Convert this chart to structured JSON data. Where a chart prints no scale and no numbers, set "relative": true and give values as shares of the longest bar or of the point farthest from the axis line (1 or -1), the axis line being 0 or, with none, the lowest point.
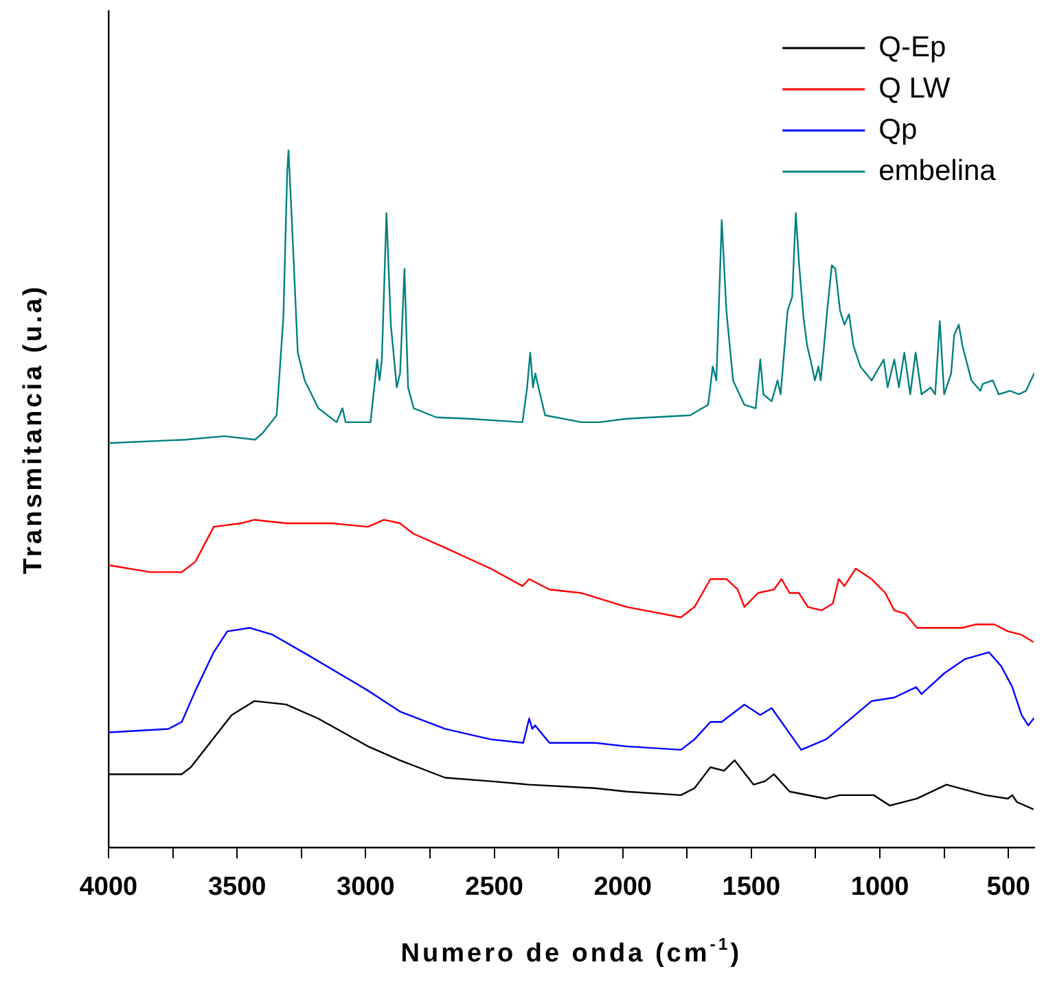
{
  "chart_data": {
    "type": "line",
    "relative": true,
    "xlabel": "Numero de onda (cm$^{-1}$)",
    "ylabel": "Transmitancia (u.a)",
    "legend": "top right",
    "grid": false,
    "marker": "none",
    "line_style": "solid",
    "tick_labels": "x",
    "xlim": [
      4000,
      400
    ],
    "xticks": [
      4000,
      {
        "value": 3750,
        "label": null
      },
      3500,
      {
        "value": 3250,
        "label": null
      },
      3000,
      {
        "value": 2750,
        "label": null
      },
      2500,
      {
        "value": 2250,
        "label": null
      },
      2000,
      {
        "value": 1750,
        "label": null
      },
      1500,
      {
        "value": 1250,
        "label": null
      },
      1000,
      {
        "value": 750,
        "label": null
      },
      500
    ],
    "series": [
      {
        "name": "Q-Ep",
        "color": "#000000",
        "x": [
          4000,
          3715,
          3680,
          3627,
          3521,
          3432,
          3309,
          3185,
          2991,
          2867,
          2691,
          2514,
          2364,
          2108,
          1985,
          1774,
          1721,
          1659,
          1606,
          1565,
          1491,
          1447,
          1412,
          1351,
          1209,
          1156,
          1024,
          962,
          856,
          741,
          590,
          502,
          485,
          467,
          405
        ],
        "values": [
          0.105,
          0.105,
          0.115,
          0.14,
          0.19,
          0.21,
          0.205,
          0.185,
          0.145,
          0.125,
          0.1,
          0.095,
          0.09,
          0.085,
          0.08,
          0.075,
          0.085,
          0.115,
          0.11,
          0.125,
          0.09,
          0.095,
          0.105,
          0.08,
          0.07,
          0.075,
          0.075,
          0.06,
          0.07,
          0.09,
          0.075,
          0.07,
          0.075,
          0.065,
          0.055
        ]
      },
      {
        "name": "Q LW",
        "color": "#ff0000",
        "x": [
          4000,
          3838,
          3715,
          3662,
          3591,
          3485,
          3432,
          3309,
          3132,
          2991,
          2929,
          2867,
          2814,
          2691,
          2514,
          2390,
          2364,
          2338,
          2285,
          2161,
          1985,
          1915,
          1774,
          1721,
          1659,
          1597,
          1553,
          1527,
          1474,
          1412,
          1383,
          1351,
          1315,
          1280,
          1227,
          1183,
          1160,
          1138,
          1094,
          1032,
          979,
          944,
          900,
          856,
          767,
          679,
          626,
          555,
          502,
          449,
          405
        ],
        "values": [
          0.405,
          0.395,
          0.395,
          0.41,
          0.46,
          0.465,
          0.47,
          0.465,
          0.465,
          0.46,
          0.47,
          0.465,
          0.45,
          0.43,
          0.4,
          0.375,
          0.385,
          0.38,
          0.37,
          0.365,
          0.345,
          0.34,
          0.33,
          0.345,
          0.385,
          0.385,
          0.37,
          0.345,
          0.365,
          0.37,
          0.385,
          0.365,
          0.365,
          0.345,
          0.34,
          0.35,
          0.385,
          0.375,
          0.4,
          0.385,
          0.365,
          0.34,
          0.335,
          0.315,
          0.315,
          0.315,
          0.32,
          0.32,
          0.31,
          0.305,
          0.295
        ]
      },
      {
        "name": "Qp",
        "color": "#0000ff",
        "x": [
          4000,
          3767,
          3715,
          3662,
          3591,
          3538,
          3450,
          3361,
          3220,
          2991,
          2867,
          2691,
          2514,
          2387,
          2364,
          2352,
          2341,
          2285,
          2108,
          1985,
          1774,
          1721,
          1659,
          1615,
          1527,
          1465,
          1421,
          1306,
          1209,
          1032,
          944,
          859,
          838,
          749,
          670,
          576,
          528,
          485,
          449,
          423,
          402
        ],
        "values": [
          0.165,
          0.17,
          0.18,
          0.225,
          0.28,
          0.31,
          0.315,
          0.305,
          0.275,
          0.225,
          0.195,
          0.17,
          0.155,
          0.15,
          0.185,
          0.17,
          0.175,
          0.15,
          0.15,
          0.145,
          0.14,
          0.155,
          0.18,
          0.18,
          0.205,
          0.19,
          0.2,
          0.14,
          0.155,
          0.21,
          0.215,
          0.23,
          0.22,
          0.25,
          0.27,
          0.28,
          0.26,
          0.23,
          0.19,
          0.175,
          0.185
        ]
      },
      {
        "name": "embelina",
        "color": "#008080",
        "x": [
          4000,
          3700,
          3550,
          3430,
          3399,
          3346,
          3320,
          3305,
          3300,
          3287,
          3264,
          3237,
          3184,
          3113,
          3090,
          3078,
          3025,
          2981,
          2955,
          2946,
          2937,
          2919,
          2902,
          2879,
          2866,
          2849,
          2835,
          2813,
          2725,
          2601,
          2390,
          2372,
          2360,
          2349,
          2340,
          2328,
          2302,
          2160,
          2092,
          1984,
          1738,
          1668,
          1650,
          1636,
          1615,
          1597,
          1571,
          1527,
          1483,
          1465,
          1453,
          1421,
          1398,
          1386,
          1359,
          1341,
          1327,
          1315,
          1297,
          1283,
          1270,
          1253,
          1239,
          1230,
          1217,
          1205,
          1187,
          1173,
          1155,
          1138,
          1120,
          1103,
          1076,
          1032,
          985,
          970,
          944,
          926,
          905,
          882,
          861,
          838,
          803,
          785,
          767,
          750,
          723,
          711,
          693,
          679,
          644,
          609,
          600,
          561,
          538,
          494,
          459,
          432,
          400
        ],
        "values": [
          0.58,
          0.585,
          0.59,
          0.585,
          0.595,
          0.62,
          0.76,
          0.97,
          1,
          0.9,
          0.71,
          0.67,
          0.63,
          0.61,
          0.63,
          0.61,
          0.61,
          0.61,
          0.7,
          0.67,
          0.7,
          0.91,
          0.75,
          0.66,
          0.68,
          0.83,
          0.66,
          0.63,
          0.617,
          0.615,
          0.61,
          0.66,
          0.71,
          0.66,
          0.68,
          0.66,
          0.62,
          0.61,
          0.61,
          0.615,
          0.62,
          0.635,
          0.69,
          0.67,
          0.9,
          0.77,
          0.67,
          0.635,
          0.63,
          0.7,
          0.65,
          0.64,
          0.67,
          0.65,
          0.77,
          0.79,
          0.91,
          0.84,
          0.76,
          0.72,
          0.7,
          0.67,
          0.69,
          0.67,
          0.72,
          0.77,
          0.835,
          0.83,
          0.77,
          0.75,
          0.765,
          0.72,
          0.69,
          0.67,
          0.7,
          0.66,
          0.7,
          0.66,
          0.71,
          0.65,
          0.71,
          0.65,
          0.66,
          0.65,
          0.755,
          0.65,
          0.68,
          0.735,
          0.75,
          0.72,
          0.67,
          0.655,
          0.665,
          0.67,
          0.65,
          0.655,
          0.65,
          0.655,
          0.68
        ]
      }
    ]
  }
}
